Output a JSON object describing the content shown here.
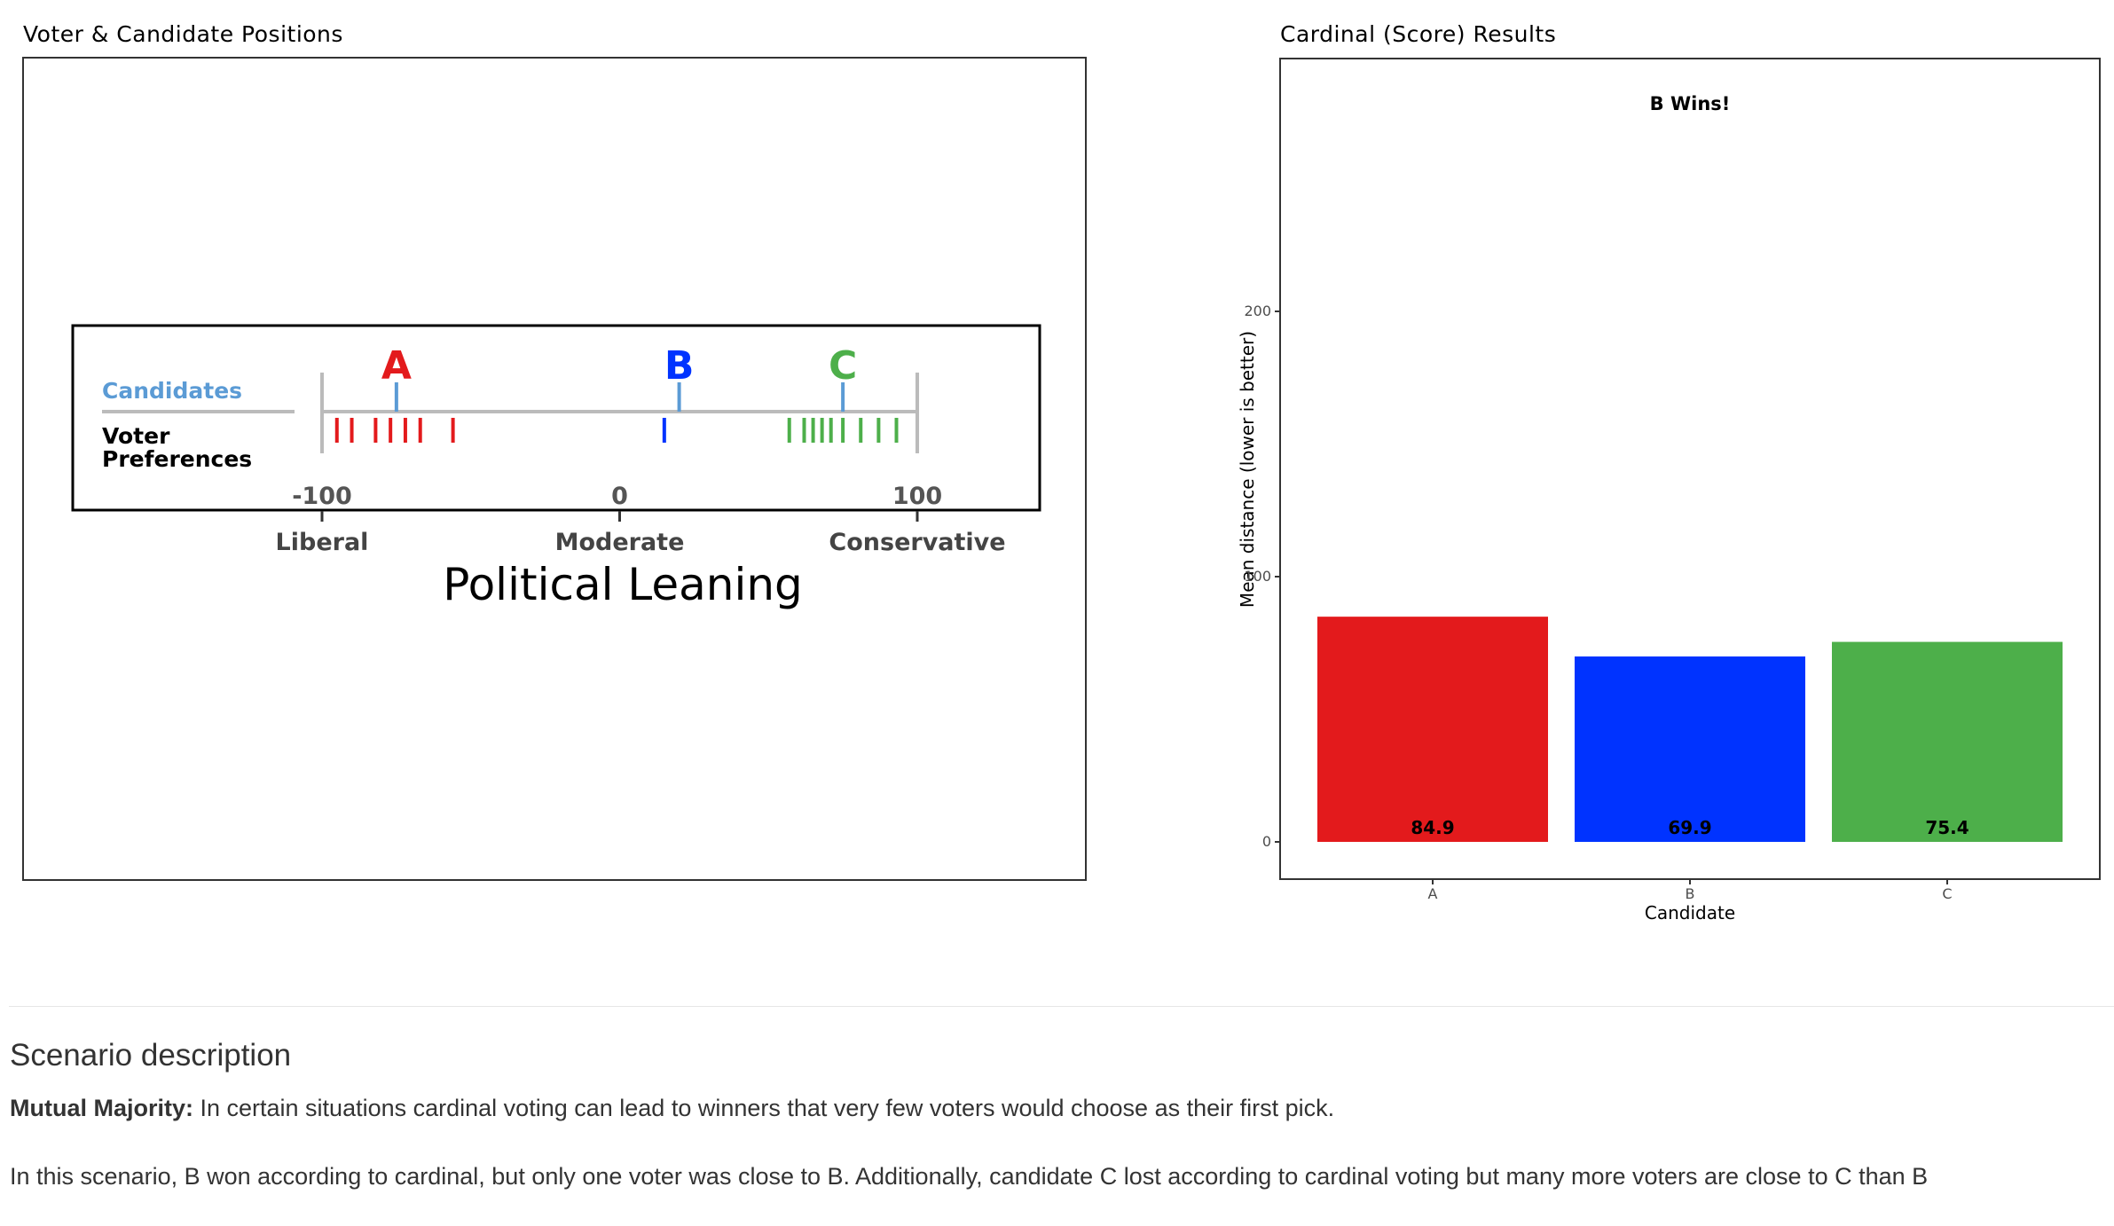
{
  "left_panel": {
    "title": "Voter & Candidate Positions",
    "row_label_candidates": "Candidates",
    "row_label_voter_line1": "Voter",
    "row_label_voter_line2": "Preferences",
    "axis_ticks": [
      {
        "value": -100,
        "label": "-100",
        "region": "Liberal"
      },
      {
        "value": 0,
        "label": "0",
        "region": "Moderate"
      },
      {
        "value": 100,
        "label": "100",
        "region": "Conservative"
      }
    ],
    "axis_title": "Political Leaning",
    "candidates": [
      {
        "name": "A",
        "position": -75,
        "color": "#e31a1c"
      },
      {
        "name": "B",
        "position": 20,
        "color": "#0033ff"
      },
      {
        "name": "C",
        "position": 75,
        "color": "#4daf4a"
      }
    ],
    "voters": [
      {
        "position": -95,
        "color": "#e31a1c"
      },
      {
        "position": -90,
        "color": "#e31a1c"
      },
      {
        "position": -82,
        "color": "#e31a1c"
      },
      {
        "position": -77,
        "color": "#e31a1c"
      },
      {
        "position": -72,
        "color": "#e31a1c"
      },
      {
        "position": -67,
        "color": "#e31a1c"
      },
      {
        "position": -56,
        "color": "#e31a1c"
      },
      {
        "position": 15,
        "color": "#0033ff"
      },
      {
        "position": 57,
        "color": "#4daf4a"
      },
      {
        "position": 62,
        "color": "#4daf4a"
      },
      {
        "position": 65,
        "color": "#4daf4a"
      },
      {
        "position": 68,
        "color": "#4daf4a"
      },
      {
        "position": 71,
        "color": "#4daf4a"
      },
      {
        "position": 75,
        "color": "#4daf4a"
      },
      {
        "position": 81,
        "color": "#4daf4a"
      },
      {
        "position": 87,
        "color": "#4daf4a"
      },
      {
        "position": 93,
        "color": "#4daf4a"
      }
    ],
    "candidate_tick_color": "#5b9bd5",
    "line_color": "#bbbbbb",
    "candidates_label_color": "#5b9bd5"
  },
  "right_panel": {
    "title": "Cardinal (Score) Results"
  },
  "chart_data": {
    "type": "bar",
    "title": "B Wins!",
    "categories": [
      "A",
      "B",
      "C"
    ],
    "values": [
      84.9,
      69.9,
      75.4
    ],
    "value_labels": [
      "84.9",
      "69.9",
      "75.4"
    ],
    "colors": [
      "#e31a1c",
      "#0033ff",
      "#4daf4a"
    ],
    "xlabel": "Candidate",
    "ylabel": "Mean distance (lower is better)",
    "yticks": [
      0,
      100,
      200
    ],
    "ylim": [
      -14,
      296
    ],
    "grid": false
  },
  "scenario": {
    "heading": "Scenario description",
    "lead_bold": "Mutual Majority:",
    "lead_text": " In certain situations cardinal voting can lead to winners that very few voters would choose as their first pick.",
    "detail": "In this scenario, B won according to cardinal, but only one voter was close to B. Additionally, candidate C lost according to cardinal voting but many more voters are close to C than B"
  }
}
